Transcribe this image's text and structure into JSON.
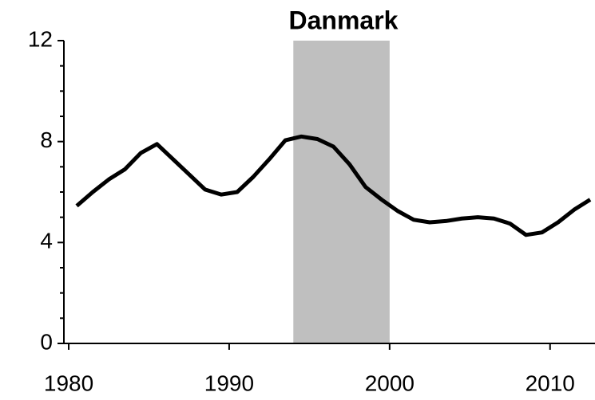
{
  "chart_data": {
    "type": "line",
    "title": "Danmark",
    "x": [
      1980.5,
      1981.5,
      1982.5,
      1983.5,
      1984.5,
      1985.5,
      1986.5,
      1987.5,
      1988.5,
      1989.5,
      1990.5,
      1991.5,
      1992.5,
      1993.5,
      1994.5,
      1995.5,
      1996.5,
      1997.5,
      1998.5,
      1999.5,
      2000.5,
      2001.5,
      2002.5,
      2003.5,
      2004.5,
      2005.5,
      2006.5,
      2007.5,
      2008.5,
      2009.5,
      2010.5,
      2011.5,
      2012.5
    ],
    "series": [
      {
        "color": "#000000",
        "values": [
          5.45,
          6.0,
          6.5,
          6.9,
          7.55,
          7.9,
          7.3,
          6.7,
          6.1,
          5.9,
          6.0,
          6.6,
          7.3,
          8.05,
          8.2,
          8.1,
          7.8,
          7.1,
          6.2,
          5.7,
          5.25,
          4.9,
          4.8,
          4.85,
          4.95,
          5.0,
          4.95,
          4.75,
          4.3,
          4.4,
          4.8,
          5.3,
          5.7
        ]
      }
    ],
    "shade": {
      "range": [
        1994,
        2000
      ],
      "color": "#bfbfbf"
    },
    "xlim": [
      1979.7,
      2012.8
    ],
    "xticks": [
      1980,
      1990,
      2000,
      2010
    ],
    "ylim": [
      0,
      12
    ],
    "yticks": [
      0,
      4,
      8,
      12
    ],
    "yminorticks": [
      1,
      2,
      3,
      5,
      6,
      7,
      9,
      10,
      11
    ]
  }
}
